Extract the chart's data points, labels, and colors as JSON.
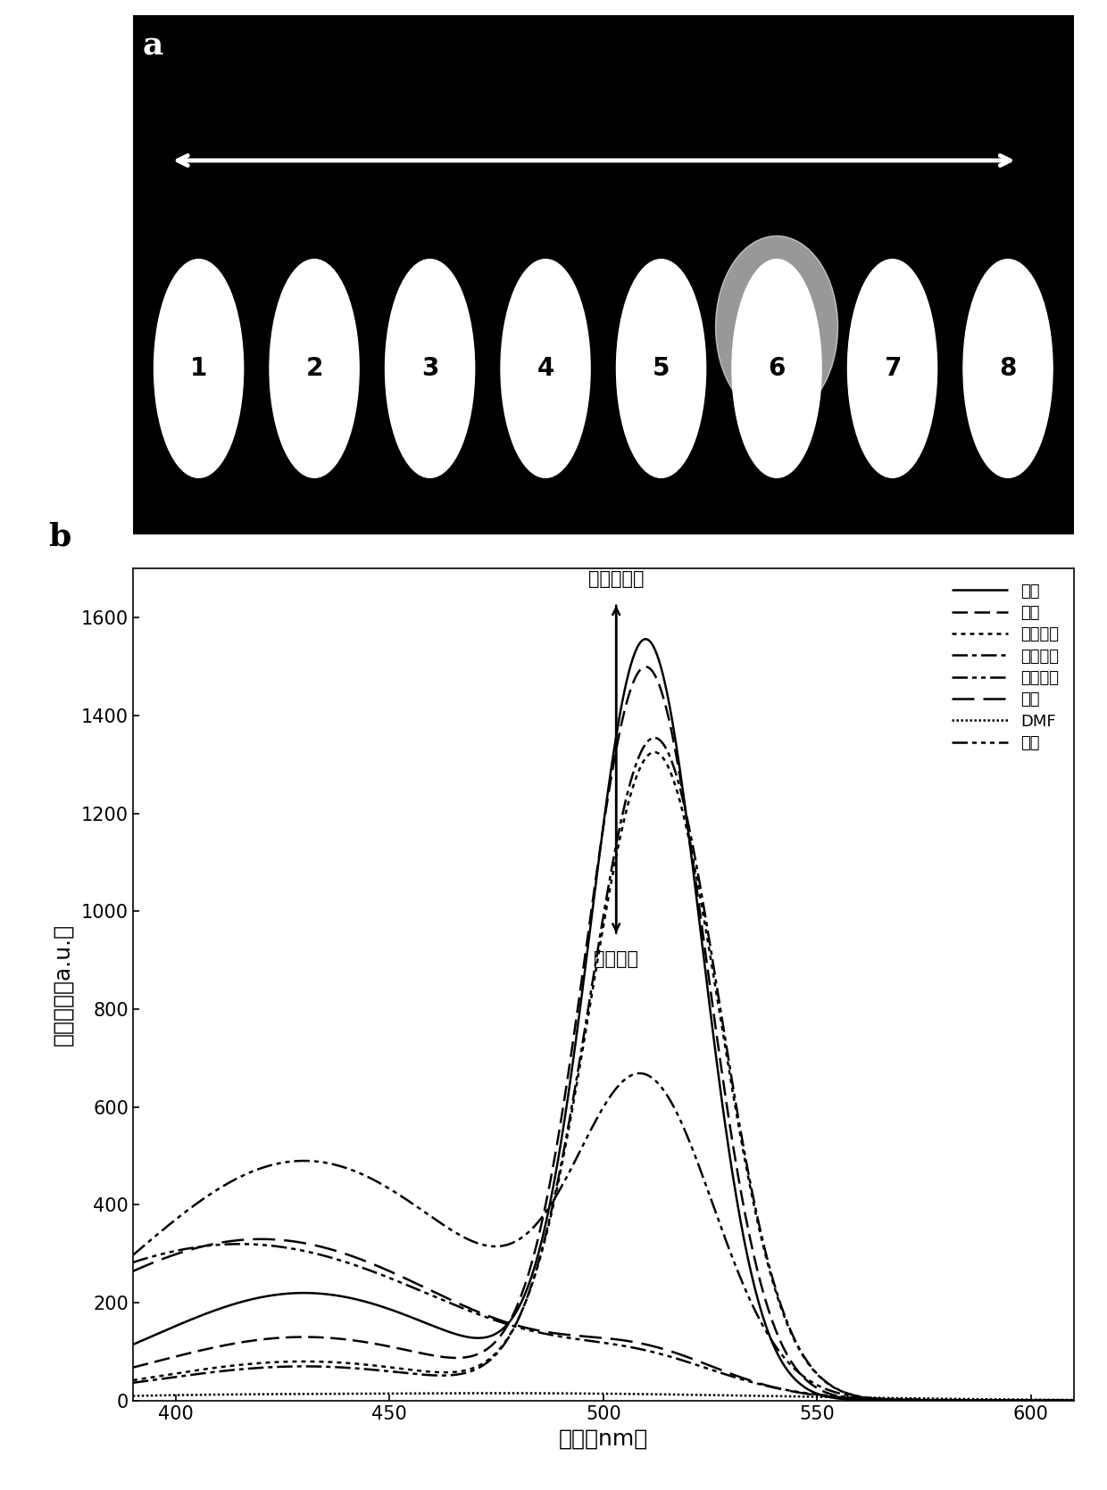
{
  "panel_a_bg": "#000000",
  "panel_a_label": "a",
  "panel_b_label": "b",
  "circles": [
    1,
    2,
    3,
    4,
    5,
    6,
    7,
    8
  ],
  "xlabel": "波长（nm）",
  "ylabel": "荆光强度（a.u.）",
  "xlim": [
    390,
    610
  ],
  "ylim": [
    0,
    1700
  ],
  "xticks": [
    400,
    450,
    500,
    550,
    600
  ],
  "yticks": [
    0,
    200,
    400,
    600,
    800,
    1000,
    1200,
    1400,
    1600
  ],
  "legend_labels": [
    "己烷",
    "甲苯",
    "二氯甲烷",
    "乙酸乙酯",
    "三氯甲烷",
    "乙腑",
    "DMF",
    "乙醇"
  ],
  "annotation_top": "低极性溦剂",
  "annotation_bottom": "极性溦剂",
  "wavelengths_start": 390,
  "wavelengths_end": 610,
  "wavelengths_num": 500,
  "fig_width": 12.4,
  "fig_height": 16.7
}
